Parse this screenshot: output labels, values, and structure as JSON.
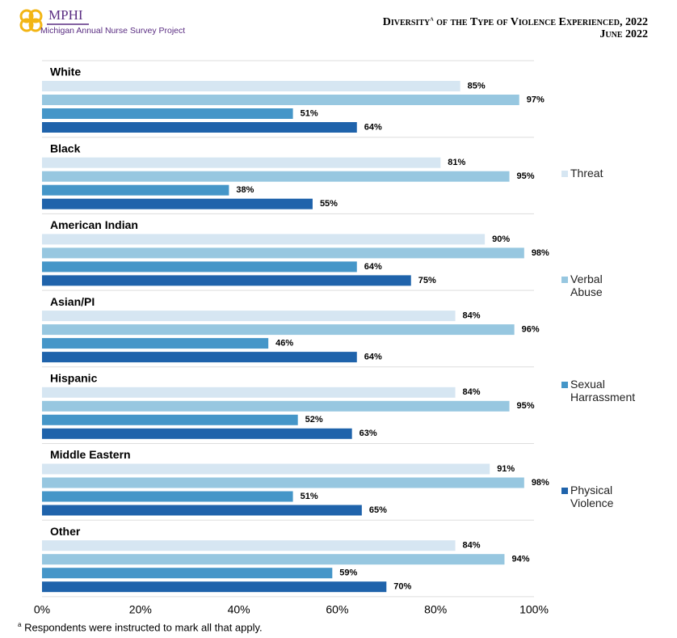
{
  "logo": {
    "name": "MPHI",
    "subtitle": "Michigan Annual Nurse Survey Project"
  },
  "chart_data": {
    "type": "grouped-hbar",
    "title": "Diversity",
    "title_marker": "a",
    "title_rest": " of the Type of Violence Experienced, 2022",
    "subtitle": "June 2022",
    "categories": [
      "White",
      "Black",
      "American Indian",
      "Asian/PI",
      "Hispanic",
      "Middle Eastern",
      "Other"
    ],
    "series": [
      {
        "name": "Threat",
        "color": "#d6e6f2",
        "values": [
          85,
          81,
          90,
          84,
          84,
          91,
          84
        ],
        "value_labels": [
          "85%",
          "81%",
          "90%",
          "84%",
          "84%",
          "91%",
          "84%"
        ]
      },
      {
        "name": "Verbal Abuse",
        "color": "#97c7e0",
        "values": [
          97,
          95,
          98,
          96,
          95,
          98,
          94
        ],
        "value_labels": [
          "97%",
          "95%",
          "98%",
          "96%",
          "95%",
          "98%",
          "94%"
        ]
      },
      {
        "name": "Sexual Harrassment",
        "color": "#4596c8",
        "values": [
          51,
          38,
          64,
          46,
          52,
          51,
          59
        ],
        "value_labels": [
          "51%",
          "38%",
          "64%",
          "46%",
          "52%",
          "51%",
          "59%"
        ]
      },
      {
        "name": "Physical Violence",
        "color": "#1f63ab",
        "values": [
          64,
          55,
          75,
          64,
          63,
          65,
          70
        ],
        "value_labels": [
          "64%",
          "55%",
          "75%",
          "64%",
          "63%",
          "65%",
          "70%"
        ]
      }
    ],
    "xlim": [
      0,
      100
    ],
    "xticks": [
      {
        "value": 0,
        "label": "0%"
      },
      {
        "value": 20,
        "label": "20%"
      },
      {
        "value": 40,
        "label": "40%"
      },
      {
        "value": 60,
        "label": "60%"
      },
      {
        "value": 80,
        "label": "80%"
      },
      {
        "value": 100,
        "label": "100%"
      }
    ],
    "legend": "right",
    "footnote_marker": "a",
    "footnote": "Respondents were instructed to mark all that apply."
  }
}
